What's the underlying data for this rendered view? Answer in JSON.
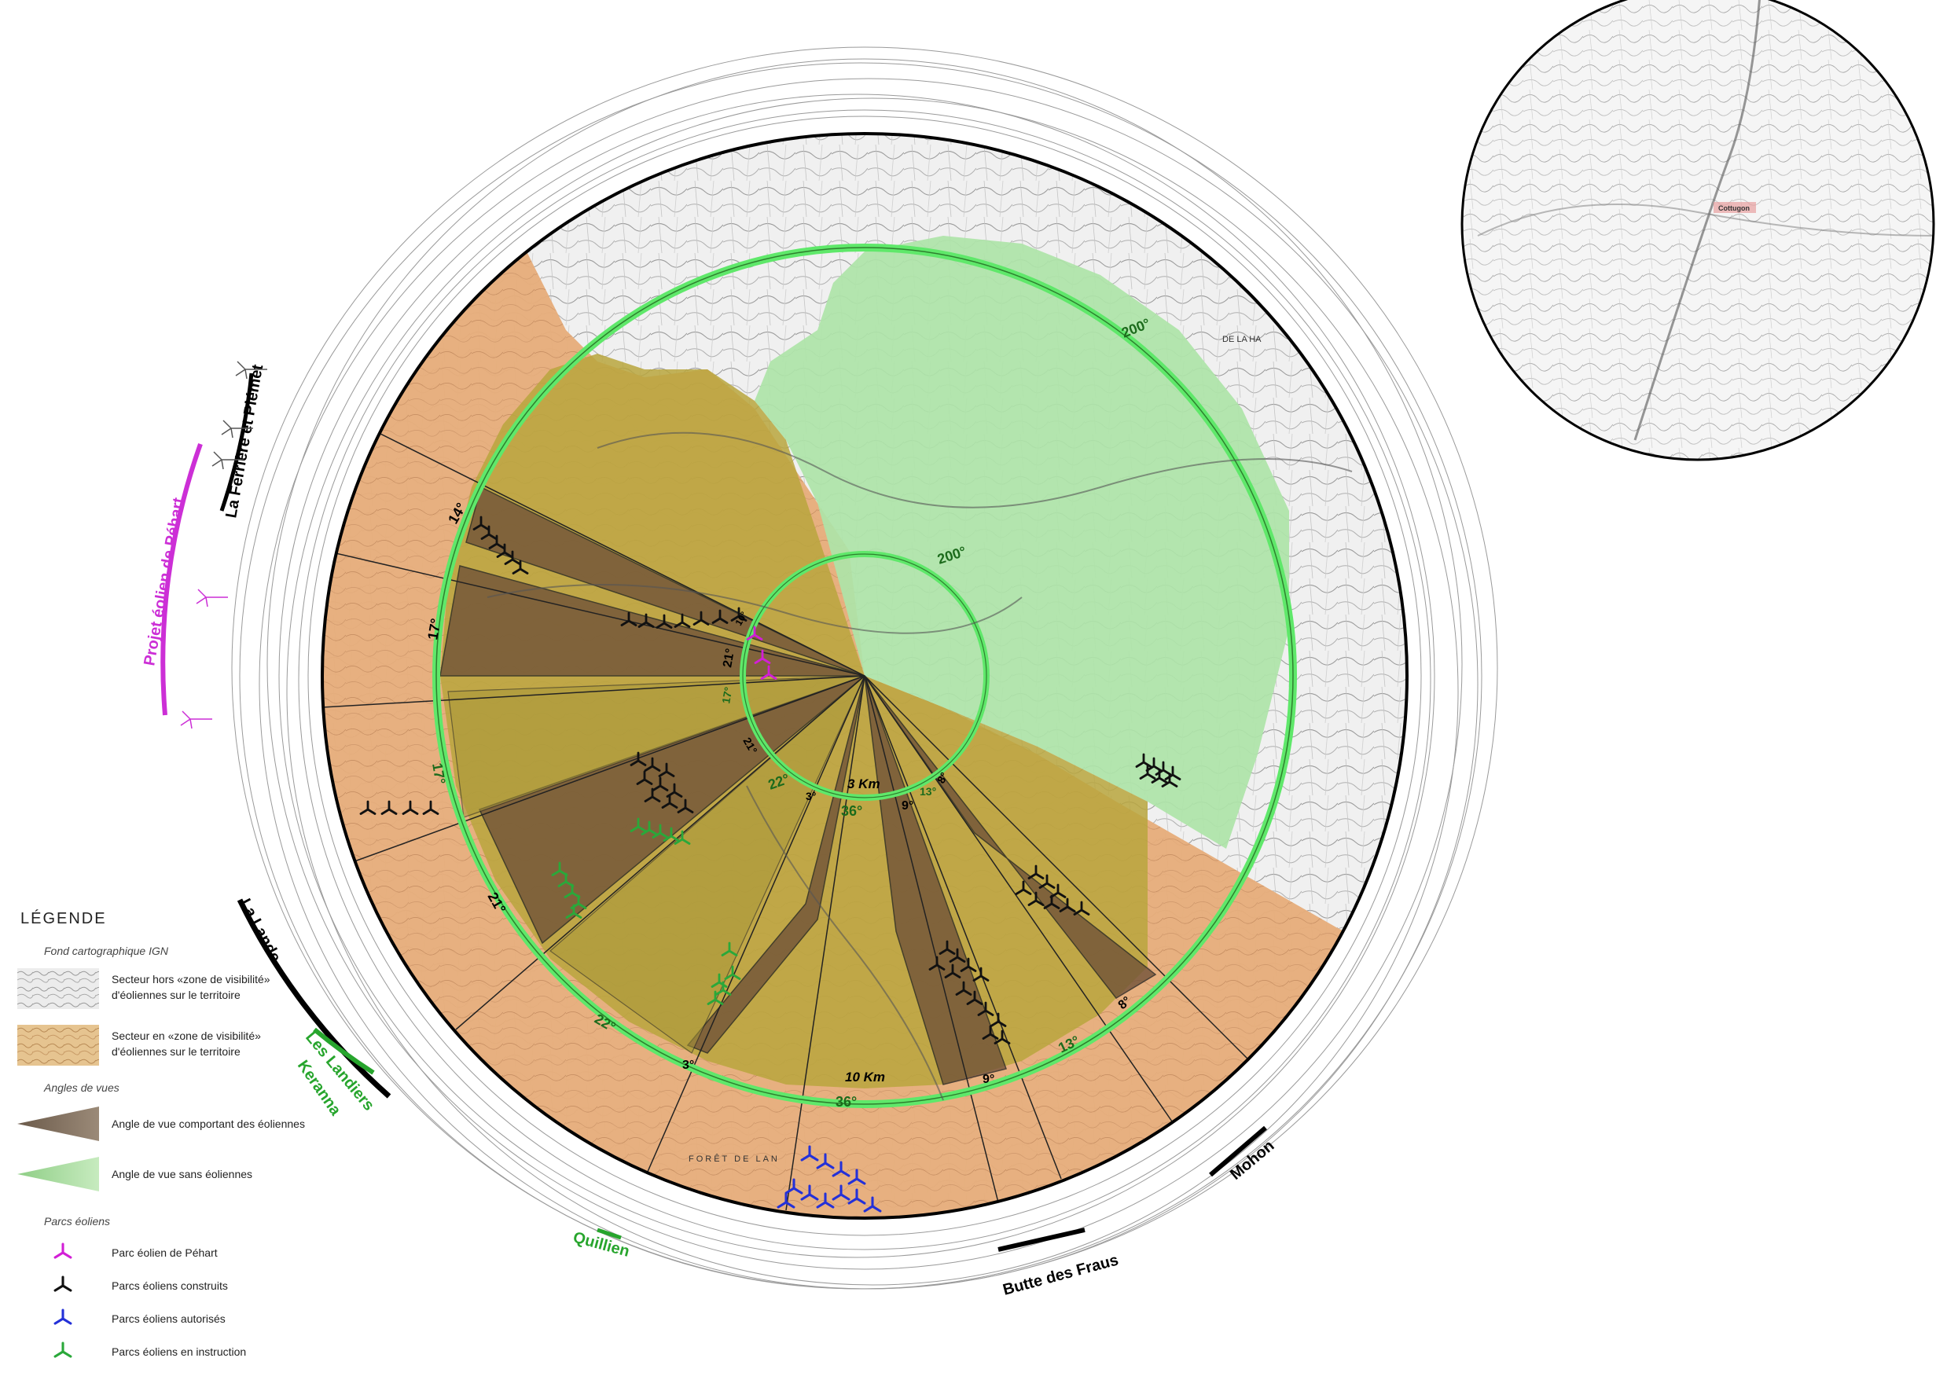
{
  "compass_ring": {
    "inner_circle_distance_label": "3 Km",
    "outer_circle_distance_label": "10 Km"
  },
  "angles": {
    "inner_green_200": "200°",
    "outer_green_200": "200°",
    "sector_14": "14°",
    "sector_17_top": "17°",
    "sector_17_mid": "17°",
    "sector_17_left": "17°",
    "sector_21_a": "21°",
    "sector_21_b": "21°",
    "sector_21_c": "21°",
    "sector_22_a": "22°",
    "sector_22_b": "22°",
    "sector_3_a": "3°",
    "sector_3_b": "3°",
    "sector_36_a": "36°",
    "sector_36_b": "36°",
    "sector_9_a": "9°",
    "sector_9_b": "9°",
    "sector_13_a": "13°",
    "sector_13_b": "13°",
    "sector_8_a": "8°",
    "sector_8_b": "8°",
    "sector_10": "10°"
  },
  "places": {
    "la_ferriere": "La Ferrière et Plémet",
    "projet_pehart": "Projet éolien de Péhart",
    "la_lande": "La Lande",
    "les_landiers": "Les Landiers",
    "keranna": "Keranna",
    "quillien": "Quillien",
    "butte_des_fraus": "Butte des Fraus",
    "mohon": "Mohon",
    "de_la_ha": "DE LA HA",
    "foret_de_lanouee": "FORÊT DE LAN",
    "cottugon": "Cottugon"
  },
  "legend": {
    "title": "LÉGENDE",
    "section_fond": "Fond cartographique IGN",
    "item_hors_line1": "Secteur hors «zone de visibilité»",
    "item_hors_line2": "d'éoliennes sur le territoire",
    "item_en_line1": "Secteur en «zone de visibilité»",
    "item_en_line2": "d'éoliennes sur le territoire",
    "section_angles": "Angles de vues",
    "item_avec": "Angle de vue comportant des éoliennes",
    "item_sans": "Angle de vue sans éoliennes",
    "section_parcs": "Parcs éoliens",
    "item_pehart": "Parc éolien de Péhart",
    "item_construits": "Parcs éoliens construits",
    "item_autorises": "Parcs éoliens autorisés",
    "item_instruction": "Parcs éoliens en instruction"
  },
  "colors": {
    "pehart": "#d21fd6",
    "construits": "#111111",
    "autorises": "#2431d8",
    "instruction": "#2aa83a",
    "green_ring": "#5fe86a",
    "zone_visibility": "#e9b07a",
    "sector_with_turbines": "#7a5a3c",
    "sector_without_turbines": "#b8a53c",
    "green_zone": "#a9e3a5",
    "place_black": "#000000",
    "place_magenta": "#cc2fd6",
    "place_green": "#27a52d"
  }
}
